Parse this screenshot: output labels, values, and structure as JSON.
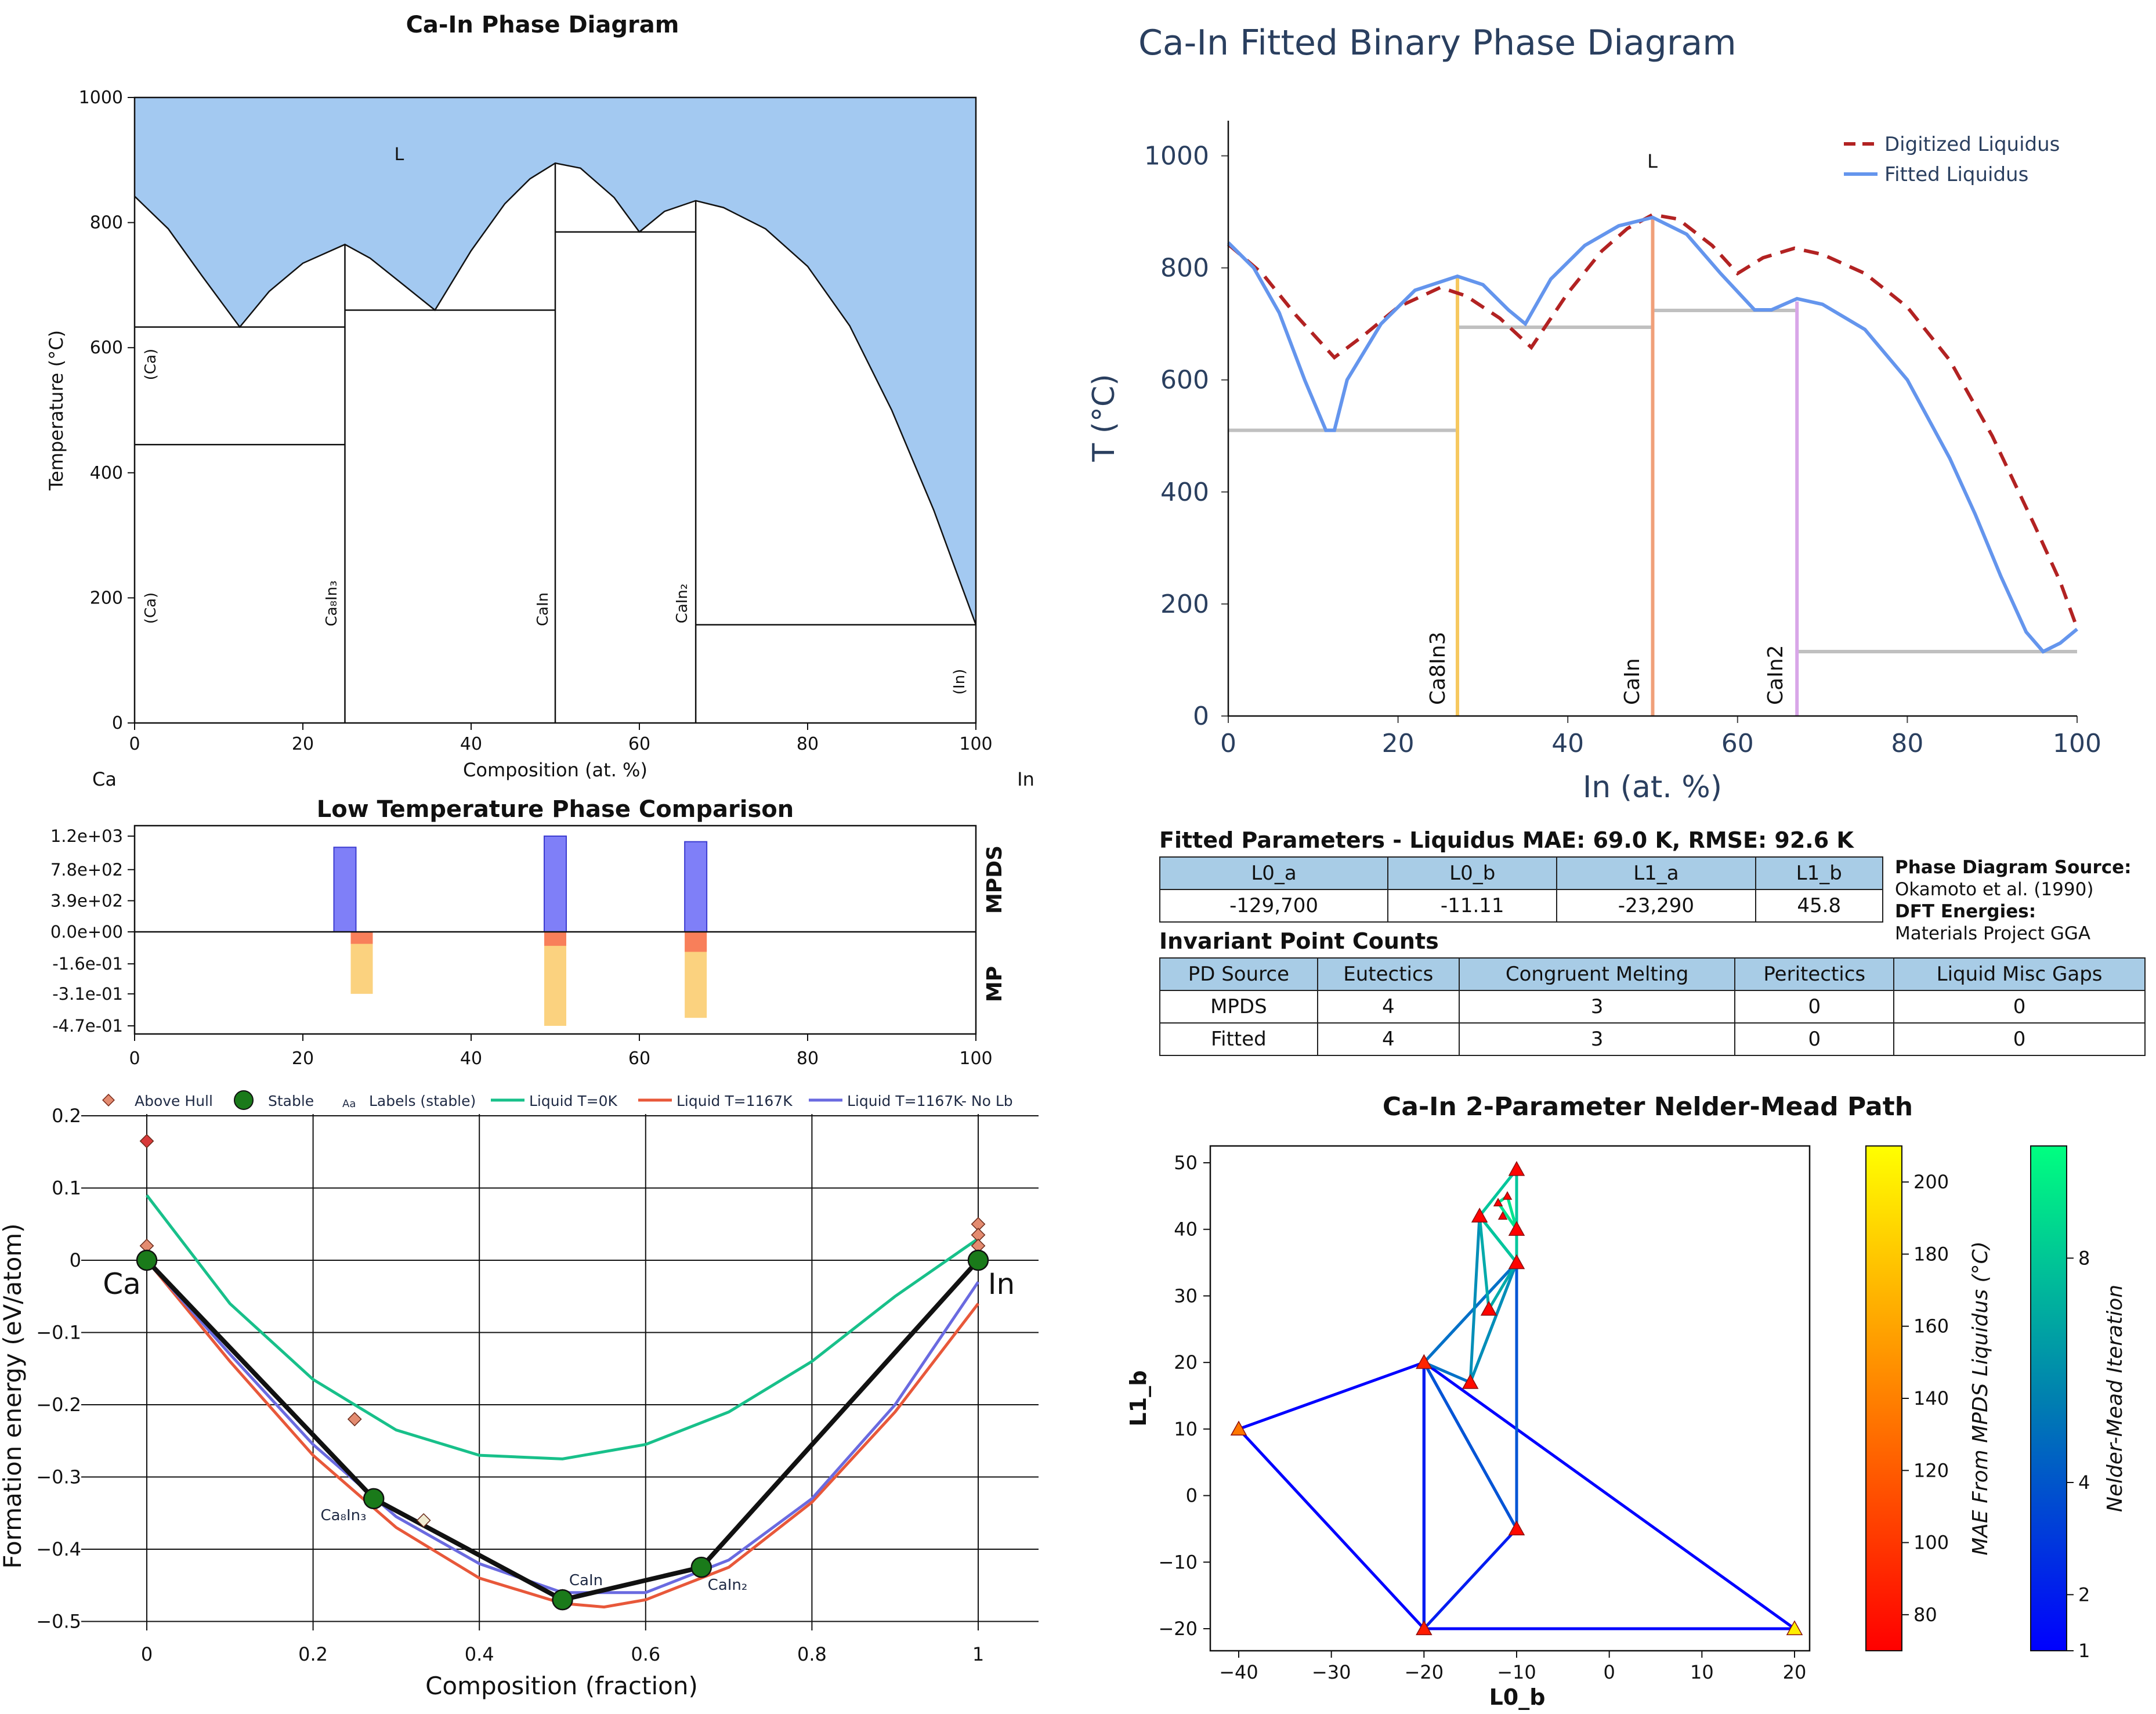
{
  "pd1": {
    "title": "Ca-In Phase Diagram",
    "xlabel": "Composition (at. %)",
    "ylabel": "Temperature (°C)",
    "left_element": "Ca",
    "right_element": "In",
    "liquid_label": "L",
    "phase_labels": [
      "(Ca)",
      "(Ca)",
      "Ca₈In₃",
      "CaIn",
      "CaIn₂",
      "(In)"
    ],
    "fill_color": "#a3c9f1"
  },
  "pd2": {
    "title": "Ca-In Fitted Binary Phase Diagram",
    "xlabel": "In (at. %)",
    "ylabel": "T (°C)",
    "liquid_label": "L",
    "legend": [
      "Digitized Liquidus",
      "Fitted Liquidus"
    ],
    "compound_labels": [
      "Ca8In3",
      "CaIn",
      "CaIn2"
    ],
    "colors": {
      "digitized": "#b22222",
      "fitted": "#6495ed",
      "ca8in3": "#f6c85f",
      "cain": "#f0a07a",
      "cain2": "#d8a6e8",
      "invariant": "#c0c0c0"
    }
  },
  "ltp": {
    "title": "Low Temperature Phase Comparison",
    "label_top": "MPDS",
    "label_bottom": "MP"
  },
  "hull": {
    "xlabel": "Composition (fraction)",
    "ylabel": "Formation energy (eV/atom)",
    "legend": [
      "Above Hull",
      "Stable",
      "Labels (stable)",
      "Liquid T=0K",
      "Liquid T=1167K",
      "Liquid T=1167K- No Lb"
    ],
    "legend_aa": "Aa",
    "end_left": "Ca",
    "end_right": "In",
    "stable_labels": [
      "Ca₈In₃",
      "CaIn",
      "CaIn₂"
    ],
    "colors": {
      "liq0": "#18c08a",
      "liq1167": "#e8583a",
      "liqnolb": "#6a6ae0",
      "above": "#e38b70",
      "stable": "#1a7a1a"
    }
  },
  "params": {
    "title": "Fitted Parameters - Liquidus MAE: 69.0 K, RMSE: 92.6 K",
    "headers": [
      "L0_a",
      "L0_b",
      "L1_a",
      "L1_b"
    ],
    "values": [
      "-129,700",
      "-11.11",
      "-23,290",
      "45.8"
    ]
  },
  "source": {
    "pd_label": "Phase Diagram Source:",
    "pd_value": "Okamoto et al. (1990)",
    "dft_label": "DFT Energies:",
    "dft_value": "Materials Project GGA"
  },
  "invariants": {
    "title": "Invariant Point Counts",
    "headers": [
      "PD Source",
      "Eutectics",
      "Congruent Melting",
      "Peritectics",
      "Liquid Misc Gaps"
    ],
    "rows": [
      [
        "MPDS",
        "4",
        "3",
        "0",
        "0"
      ],
      [
        "Fitted",
        "4",
        "3",
        "0",
        "0"
      ]
    ]
  },
  "nm": {
    "title": "Ca-In 2-Parameter Nelder-Mead Path",
    "xlabel": "L0_b",
    "ylabel": "L1_b",
    "cbar_mae_label": "MAE From MPDS Liquidus (°C)",
    "cbar_iter_label": "Nelder-Mead Iteration"
  },
  "chart_data": [
    {
      "type": "area",
      "id": "pd1",
      "title": "Ca-In Phase Diagram",
      "xlabel": "Composition (at. %)",
      "ylabel": "Temperature (°C)",
      "xlim": [
        0,
        100
      ],
      "ylim": [
        0,
        1000
      ],
      "xticks": [
        0,
        20,
        40,
        60,
        80,
        100
      ],
      "yticks": [
        0,
        200,
        400,
        600,
        800,
        1000
      ],
      "liquidus": [
        [
          0,
          842
        ],
        [
          4,
          790
        ],
        [
          8,
          715
        ],
        [
          12.5,
          633
        ],
        [
          16,
          690
        ],
        [
          20,
          735
        ],
        [
          25,
          765
        ],
        [
          28,
          743
        ],
        [
          32,
          700
        ],
        [
          35.7,
          660
        ],
        [
          40,
          755
        ],
        [
          44,
          830
        ],
        [
          47,
          870
        ],
        [
          50,
          895
        ],
        [
          53,
          887
        ],
        [
          57,
          840
        ],
        [
          60,
          785
        ],
        [
          63,
          818
        ],
        [
          66.7,
          835
        ],
        [
          70,
          824
        ],
        [
          75,
          790
        ],
        [
          80,
          730
        ],
        [
          85,
          635
        ],
        [
          90,
          500
        ],
        [
          95,
          340
        ],
        [
          98,
          230
        ],
        [
          100,
          157
        ]
      ],
      "horizontal_lines": [
        [
          0,
          25,
          633
        ],
        [
          0,
          25,
          445
        ],
        [
          25,
          50,
          660
        ],
        [
          50,
          66.7,
          785
        ],
        [
          66.7,
          100,
          157
        ]
      ],
      "vertical_lines": [
        [
          25,
          0,
          765
        ],
        [
          50,
          0,
          895
        ],
        [
          66.7,
          0,
          835
        ]
      ]
    },
    {
      "type": "line",
      "id": "pd2",
      "title": "Ca-In Fitted Binary Phase Diagram",
      "xlabel": "In (at. %)",
      "ylabel": "T (°C)",
      "xlim": [
        0,
        100
      ],
      "ylim": [
        0,
        1100
      ],
      "xticks": [
        0,
        20,
        40,
        60,
        80,
        100
      ],
      "yticks": [
        0,
        200,
        400,
        600,
        800,
        1000
      ],
      "series": [
        {
          "name": "Digitized Liquidus",
          "x": [
            0,
            4,
            8,
            12.5,
            16,
            20,
            25,
            28,
            32,
            35.7,
            40,
            44,
            47,
            50,
            53,
            57,
            60,
            63,
            66.7,
            70,
            75,
            80,
            85,
            90,
            95,
            98,
            100
          ],
          "y": [
            842,
            790,
            715,
            640,
            680,
            730,
            765,
            750,
            710,
            658,
            755,
            830,
            870,
            895,
            887,
            840,
            790,
            818,
            835,
            824,
            790,
            730,
            635,
            500,
            340,
            240,
            157
          ]
        },
        {
          "name": "Fitted Liquidus",
          "x": [
            0,
            3,
            6,
            9,
            11.5,
            12.5,
            14,
            18,
            22,
            27,
            30,
            33,
            35,
            38,
            42,
            46,
            50,
            54,
            58,
            62,
            64,
            67,
            70,
            75,
            80,
            85,
            88,
            91,
            94,
            96,
            98,
            100
          ],
          "y": [
            845,
            800,
            720,
            600,
            510,
            510,
            600,
            700,
            760,
            785,
            770,
            725,
            700,
            780,
            840,
            875,
            890,
            860,
            790,
            725,
            725,
            745,
            735,
            690,
            600,
            460,
            360,
            250,
            150,
            115,
            130,
            155
          ]
        }
      ],
      "invariants": [
        [
          0,
          27,
          510
        ],
        [
          27,
          50,
          694
        ],
        [
          50,
          67,
          724
        ],
        [
          67,
          100,
          115
        ]
      ],
      "compounds": [
        {
          "name": "Ca8In3",
          "x": 27,
          "top": 785
        },
        {
          "name": "CaIn",
          "x": 50,
          "top": 890
        },
        {
          "name": "CaIn2",
          "x": 67,
          "top": 740
        }
      ]
    },
    {
      "type": "bar",
      "id": "ltp",
      "title": "Low Temperature Phase Comparison",
      "xlim": [
        0,
        100
      ],
      "xticks": [
        0,
        20,
        40,
        60,
        80,
        100
      ],
      "ytick_labels": [
        "1.2e+03",
        "7.8e+02",
        "3.9e+02",
        "0.0e+00",
        "-1.6e-01",
        "-3.1e-01",
        "-4.7e-01"
      ],
      "mpds_bars": [
        {
          "x": 25,
          "value": 1060
        },
        {
          "x": 50,
          "value": 1200
        },
        {
          "x": 66.7,
          "value": 1130
        }
      ],
      "mp_bars": [
        {
          "x": 27,
          "stable": -0.06,
          "total": -0.31
        },
        {
          "x": 50,
          "stable": -0.07,
          "total": -0.47
        },
        {
          "x": 66.7,
          "stable": -0.1,
          "total": -0.43
        }
      ]
    },
    {
      "type": "line",
      "id": "hull",
      "xlabel": "Composition (fraction)",
      "ylabel": "Formation energy (eV/atom)",
      "xlim": [
        -0.05,
        1.05
      ],
      "ylim": [
        -0.5,
        0.2
      ],
      "xticks": [
        0,
        0.2,
        0.4,
        0.6,
        0.8,
        1
      ],
      "yticks": [
        0.2,
        0.1,
        0,
        -0.1,
        -0.2,
        -0.3,
        -0.4,
        -0.5
      ],
      "series": [
        {
          "name": "Liquid T=0K",
          "x": [
            0,
            0.1,
            0.2,
            0.3,
            0.4,
            0.5,
            0.6,
            0.7,
            0.8,
            0.9,
            1
          ],
          "y": [
            0.09,
            -0.06,
            -0.165,
            -0.235,
            -0.27,
            -0.275,
            -0.255,
            -0.21,
            -0.14,
            -0.05,
            0.03
          ]
        },
        {
          "name": "Liquid T=1167K",
          "x": [
            0,
            0.1,
            0.2,
            0.3,
            0.4,
            0.5,
            0.55,
            0.6,
            0.7,
            0.8,
            0.9,
            1
          ],
          "y": [
            0,
            -0.14,
            -0.27,
            -0.37,
            -0.44,
            -0.475,
            -0.48,
            -0.47,
            -0.425,
            -0.335,
            -0.21,
            -0.06
          ]
        },
        {
          "name": "Liquid T=1167K- No Lb",
          "x": [
            0,
            0.1,
            0.2,
            0.3,
            0.4,
            0.5,
            0.6,
            0.7,
            0.8,
            0.9,
            1
          ],
          "y": [
            0,
            -0.13,
            -0.255,
            -0.355,
            -0.42,
            -0.46,
            -0.46,
            -0.415,
            -0.33,
            -0.2,
            -0.03
          ]
        },
        {
          "name": "Stable",
          "x": [
            0,
            0.273,
            0.5,
            0.667,
            1
          ],
          "y": [
            0,
            -0.33,
            -0.47,
            -0.425,
            0
          ]
        },
        {
          "name": "Above Hull",
          "x": [
            0,
            0,
            0.25,
            0.333,
            0.5,
            1,
            1,
            1
          ],
          "y": [
            0.165,
            0.02,
            -0.22,
            -0.36,
            -0.465,
            0.05,
            0.035,
            0.02
          ]
        }
      ]
    },
    {
      "type": "scatter",
      "id": "nm",
      "title": "Ca-In 2-Parameter Nelder-Mead Path",
      "xlabel": "L0_b",
      "ylabel": "L1_b",
      "xlim": [
        -43,
        21
      ],
      "ylim": [
        -23,
        53
      ],
      "xticks": [
        -40,
        -30,
        -20,
        -10,
        0,
        10,
        20
      ],
      "yticks": [
        -20,
        -10,
        0,
        10,
        20,
        30,
        40,
        50
      ],
      "simplices": [
        {
          "iter": 1,
          "pts": [
            [
              -40,
              10
            ],
            [
              -20,
              20
            ],
            [
              -20,
              -20
            ]
          ]
        },
        {
          "iter": 1,
          "pts": [
            [
              -20,
              -20
            ],
            [
              20,
              -20
            ],
            [
              -20,
              20
            ]
          ]
        },
        {
          "iter": 2,
          "pts": [
            [
              -20,
              20
            ],
            [
              -20,
              -20
            ],
            [
              -10,
              -5
            ]
          ]
        },
        {
          "iter": 4,
          "pts": [
            [
              -20,
              20
            ],
            [
              -10,
              -5
            ],
            [
              -10,
              35
            ]
          ]
        },
        {
          "iter": 5,
          "pts": [
            [
              -20,
              20
            ],
            [
              -10,
              35
            ],
            [
              -15,
              17
            ]
          ]
        },
        {
          "iter": 6,
          "pts": [
            [
              -15,
              17
            ],
            [
              -10,
              35
            ],
            [
              -14,
              42
            ]
          ]
        },
        {
          "iter": 7,
          "pts": [
            [
              -14,
              42
            ],
            [
              -10,
              35
            ],
            [
              -13,
              28
            ]
          ]
        },
        {
          "iter": 8,
          "pts": [
            [
              -14,
              42
            ],
            [
              -10,
              35
            ],
            [
              -10,
              49
            ]
          ]
        },
        {
          "iter": 9,
          "pts": [
            [
              -12,
              44
            ],
            [
              -10,
              40
            ],
            [
              -11,
              45
            ]
          ]
        }
      ],
      "points": [
        {
          "x": -40,
          "y": 10,
          "mae": 135
        },
        {
          "x": -20,
          "y": 20,
          "mae": 90
        },
        {
          "x": -20,
          "y": -20,
          "mae": 85
        },
        {
          "x": 20,
          "y": -20,
          "mae": 200
        },
        {
          "x": -10,
          "y": -5,
          "mae": 75
        },
        {
          "x": -10,
          "y": 35,
          "mae": 72
        },
        {
          "x": -15,
          "y": 17,
          "mae": 76
        },
        {
          "x": -14,
          "y": 42,
          "mae": 71
        },
        {
          "x": -13,
          "y": 28,
          "mae": 72
        },
        {
          "x": -10,
          "y": 49,
          "mae": 73
        },
        {
          "x": -12,
          "y": 44,
          "mae": 70
        },
        {
          "x": -11,
          "y": 45,
          "mae": 70
        },
        {
          "x": -10,
          "y": 40,
          "mae": 70
        },
        {
          "x": -11.5,
          "y": 42,
          "mae": 70
        }
      ],
      "mae_range": [
        70,
        210
      ],
      "mae_ticks": [
        80,
        100,
        120,
        140,
        160,
        180,
        200
      ],
      "iter_range": [
        1,
        10
      ],
      "iter_ticks": [
        1,
        2,
        4,
        8
      ]
    }
  ]
}
